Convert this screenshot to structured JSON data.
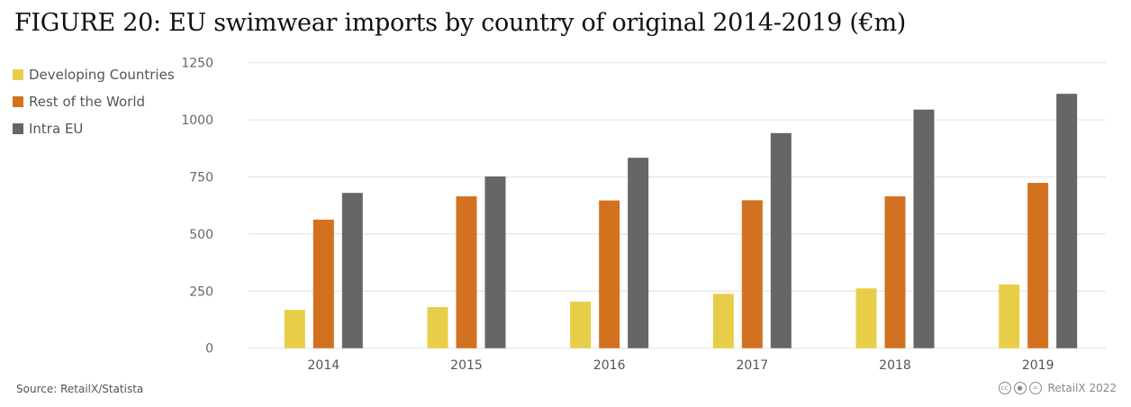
{
  "chart_data": {
    "type": "bar",
    "title": "FIGURE 20: EU swimwear imports by country of original 2014-2019 (€m)",
    "categories": [
      "2014",
      "2015",
      "2016",
      "2017",
      "2018",
      "2019"
    ],
    "series": [
      {
        "name": "Developing Countries",
        "color": "#e8ce48",
        "values": [
          168,
          180,
          204,
          238,
          262,
          279
        ]
      },
      {
        "name": "Rest of the World",
        "color": "#d27220",
        "values": [
          563,
          665,
          647,
          648,
          665,
          724
        ]
      },
      {
        "name": "Intra EU",
        "color": "#666666",
        "values": [
          680,
          752,
          834,
          942,
          1045,
          1114
        ]
      }
    ],
    "yticks": [
      0,
      250,
      500,
      750,
      1000,
      1250
    ],
    "ylim": [
      0,
      1250
    ],
    "xlabel": "",
    "ylabel": "",
    "grid": true,
    "legend_position": "left"
  },
  "footer": {
    "source": "Source: RetailX/Statista",
    "credit": "RetailX 2022",
    "license_icons": [
      "cc-icon",
      "by-icon",
      "nd-icon"
    ]
  }
}
